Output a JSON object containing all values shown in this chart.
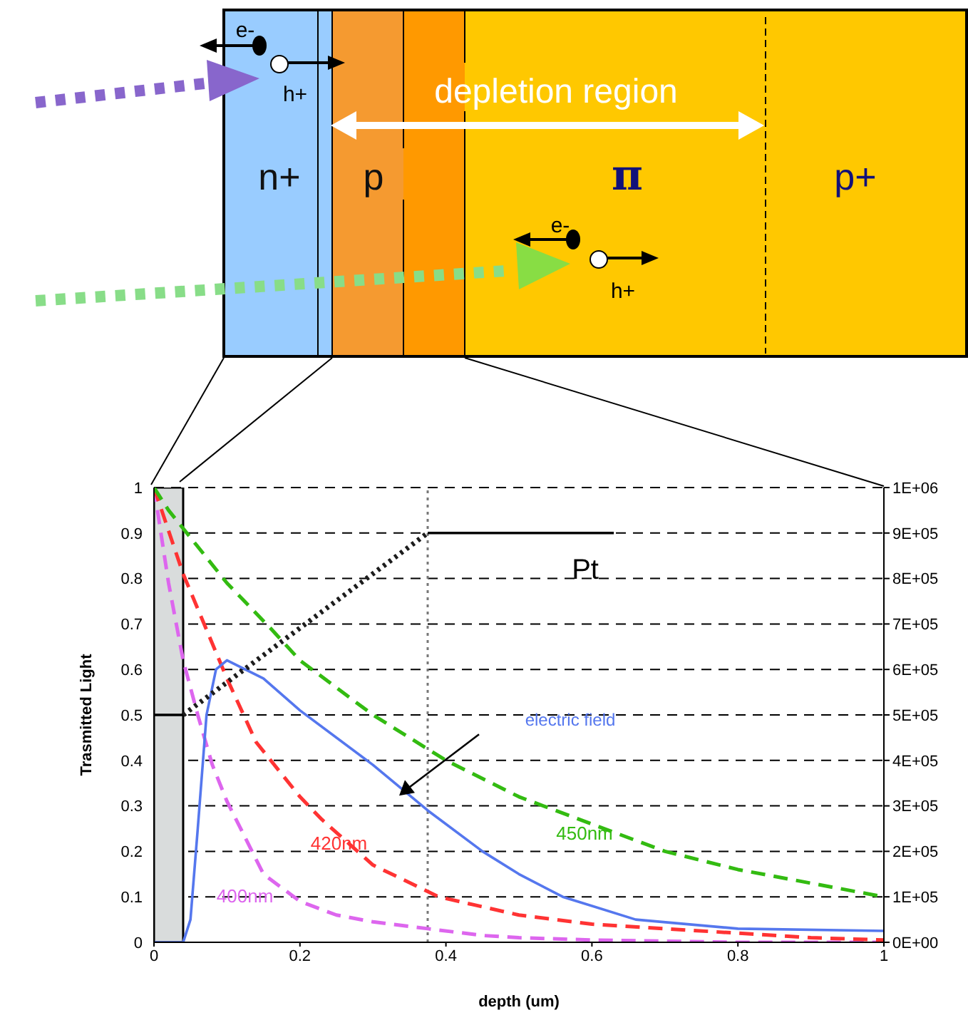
{
  "chart_data": {
    "type": "line",
    "xlabel": "depth (um)",
    "ylabel": "Trasmitted Light",
    "xlim": [
      0,
      1
    ],
    "xticks": [
      0,
      0.2,
      0.4,
      0.6,
      0.8,
      1
    ],
    "ylim": [
      0,
      1
    ],
    "yticks": [
      0,
      0.1,
      0.2,
      0.3,
      0.4,
      0.5,
      0.6,
      0.7,
      0.8,
      0.9,
      1
    ],
    "y2lim": [
      0,
      1000000
    ],
    "y2ticks": [
      {
        "value": 0,
        "label": "0E+00"
      },
      {
        "value": 100000,
        "label": "1E+05"
      },
      {
        "value": 200000,
        "label": "2E+05"
      },
      {
        "value": 300000,
        "label": "3E+05"
      },
      {
        "value": 400000,
        "label": "4E+05"
      },
      {
        "value": 500000,
        "label": "5E+05"
      },
      {
        "value": 600000,
        "label": "6E+05"
      },
      {
        "value": 700000,
        "label": "7E+05"
      },
      {
        "value": 800000,
        "label": "8E+05"
      },
      {
        "value": 900000,
        "label": "9E+05"
      },
      {
        "value": 1000000,
        "label": "1E+06"
      }
    ],
    "grid": "y",
    "marker": "none",
    "bands": [
      {
        "axis": "x",
        "from": 0,
        "to": 0.04,
        "color": "#d9dcdc"
      }
    ],
    "ref_lines": [
      {
        "axis": "x",
        "value": 0.375,
        "color": "#777777",
        "line_style": "dotted"
      }
    ],
    "annotations": [
      "e-",
      "h+",
      "n+",
      "p",
      "π",
      "p+",
      "depletion region",
      "e-",
      "h+"
    ],
    "series": [
      {
        "name": "400nm",
        "color": "#dd66ee",
        "line_style": "dashed",
        "x": [
          0,
          0.02,
          0.04,
          0.06,
          0.08,
          0.1,
          0.15,
          0.2,
          0.25,
          0.3,
          0.375,
          0.45,
          0.5,
          0.6,
          0.8,
          1
        ],
        "values": [
          1,
          0.79,
          0.62,
          0.5,
          0.39,
          0.31,
          0.15,
          0.09,
          0.06,
          0.045,
          0.03,
          0.015,
          0.01,
          0.005,
          0,
          0
        ]
      },
      {
        "name": "420nm",
        "color": "#ff3333",
        "line_style": "dashed",
        "x": [
          0,
          0.04,
          0.1,
          0.14,
          0.2,
          0.23,
          0.3,
          0.39,
          0.5,
          0.6,
          0.7,
          0.8,
          0.9,
          1
        ],
        "values": [
          1,
          0.81,
          0.58,
          0.44,
          0.32,
          0.27,
          0.17,
          0.1,
          0.06,
          0.04,
          0.03,
          0.02,
          0.01,
          0.005
        ]
      },
      {
        "name": "450nm",
        "color": "#33bb11",
        "line_style": "dashed",
        "x": [
          0,
          0.02,
          0.1,
          0.16,
          0.2,
          0.3,
          0.4,
          0.5,
          0.6,
          0.7,
          0.8,
          0.9,
          1
        ],
        "values": [
          1,
          0.95,
          0.79,
          0.69,
          0.62,
          0.5,
          0.4,
          0.32,
          0.26,
          0.2,
          0.16,
          0.13,
          0.1
        ]
      },
      {
        "name": "electric field",
        "color": "#5577ee",
        "line_style": "solid",
        "axis": "y2",
        "x": [
          0,
          0.04,
          0.05,
          0.06,
          0.072,
          0.085,
          0.1,
          0.15,
          0.2,
          0.3,
          0.375,
          0.45,
          0.5,
          0.56,
          0.66,
          0.8,
          1
        ],
        "values": [
          0,
          0,
          50000,
          250000,
          500000,
          600000,
          620000,
          580000,
          510000,
          390000,
          290000,
          200000,
          150000,
          100000,
          50000,
          30000,
          25000
        ]
      },
      {
        "name": "Pt",
        "color": "#000000",
        "line_style": "solid",
        "x": [
          0,
          0.04,
          0.2,
          0.375,
          0.63
        ],
        "values": [
          0.5,
          0.5,
          null,
          0.9,
          0.9
        ]
      },
      {
        "color": "#1c1c1c",
        "line_style": "dotted",
        "x": [
          0.04,
          0.375
        ],
        "values": [
          0.5,
          0.9
        ]
      }
    ]
  }
}
